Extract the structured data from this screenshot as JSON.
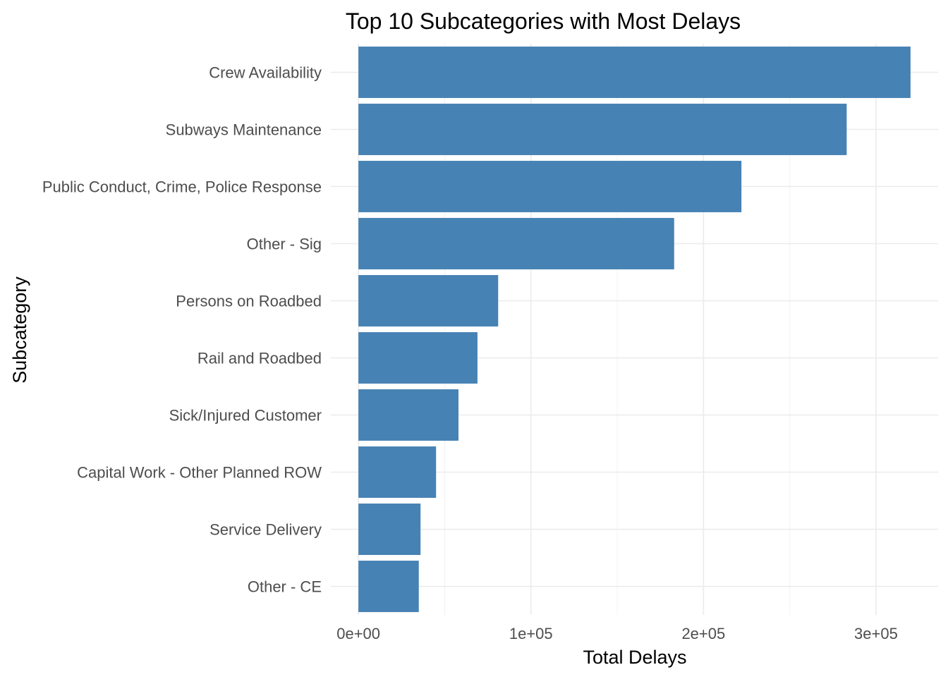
{
  "chart_data": {
    "type": "bar",
    "orientation": "horizontal",
    "title": "Top 10 Subcategories with Most Delays",
    "xlabel": "Total Delays",
    "ylabel": "Subcategory",
    "categories": [
      "Crew Availability",
      "Subways Maintenance",
      "Public Conduct, Crime, Police Response",
      "Other - Sig",
      "Persons on Roadbed",
      "Rail and Roadbed",
      "Sick/Injured Customer",
      "Capital Work - Other Planned ROW",
      "Service Delivery",
      "Other - CE"
    ],
    "values": [
      320000,
      283000,
      222000,
      183000,
      81000,
      69000,
      58000,
      45000,
      36000,
      35000
    ],
    "xlim": [
      -16000,
      336000
    ],
    "x_ticks": [
      0,
      100000,
      200000,
      300000
    ],
    "x_tick_labels": [
      "0e+00",
      "1e+05",
      "2e+05",
      "3e+05"
    ],
    "grid": true,
    "legend": "none",
    "bar_color": "#4682B4"
  }
}
